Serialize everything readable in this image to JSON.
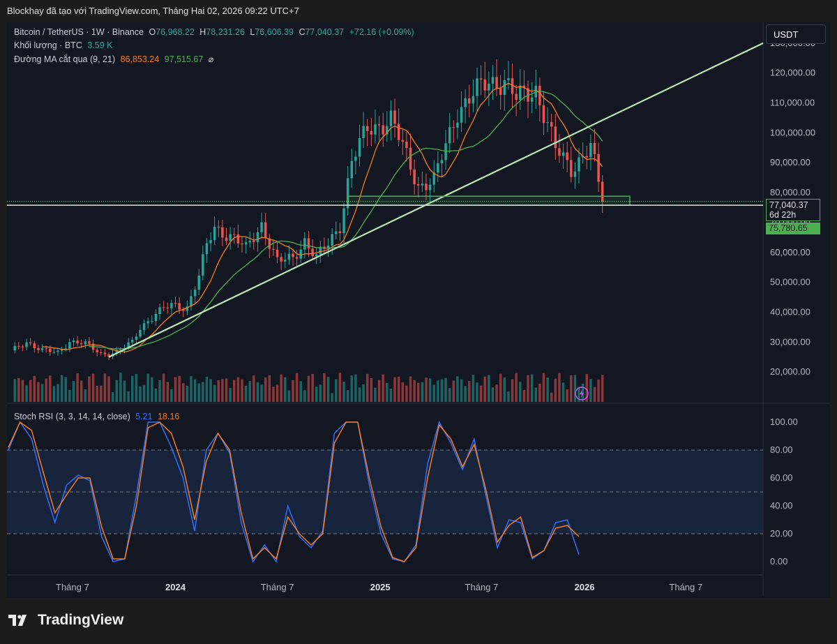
{
  "header": {
    "attribution": "Blockhay đã tạo với TradingView.com, Tháng Hai 02, 2026 09:22 UTC+7"
  },
  "legend": {
    "symbol": "Bitcoin / TetherUS · 1W · Binance",
    "o_label": "O",
    "o_value": "76,968.22",
    "h_label": "H",
    "h_value": "78,231.26",
    "l_label": "L",
    "l_value": "76,606.39",
    "c_label": "C",
    "c_value": "77,040.37",
    "change": "+72.16 (+0.09%)",
    "volume_label": "Khối lượng · BTC",
    "volume_value": "3.59 K",
    "ma_label": "Đường MA cắt qua (9, 21)",
    "ma_fast_value": "86,853.24",
    "ma_slow_value": "97,515.67",
    "ma_icon": "empty-set-icon"
  },
  "currency_button": "USDT",
  "price_tag": {
    "price": "77,040.37",
    "countdown": "6d 22h"
  },
  "support_tag": "75,780.65",
  "rsi_legend": {
    "label": "Stoch RSI (3, 3, 14, 14, close)",
    "k_value": "5.21",
    "d_value": "18.16"
  },
  "brand": "TradingView",
  "colors": {
    "up": "#26a69a",
    "down": "#ef5350",
    "ma_fast": "#f57c1f",
    "ma_slow": "#4caf50",
    "trendline": "#b9e6b4",
    "rsi_k": "#2f6fff",
    "rsi_d": "#f57c1f",
    "cross": "#2962ff"
  },
  "chart_data": [
    {
      "type": "candlestick",
      "title": "Bitcoin / TetherUS · 1W · Binance",
      "y_ticks": [
        "20,000.00",
        "30,000.00",
        "40,000.00",
        "50,000.00",
        "60,000.00",
        "70,000.00",
        "80,000.00",
        "90,000.00",
        "100,000.00",
        "110,000.00",
        "120,000.00",
        "130,000.00"
      ],
      "x_ticks": [
        "Tháng 7",
        "2024",
        "Tháng 7",
        "2025",
        "Tháng 7",
        "2026",
        "Tháng 7"
      ],
      "x_tick_dates": [
        "2023-07-01",
        "2024-01-01",
        "2024-07-01",
        "2025-01-01",
        "2025-07-01",
        "2026-01-01",
        "2026-07-01"
      ],
      "x_range": [
        "2023-03-06",
        "2026-11-16"
      ],
      "ylim": [
        10000,
        133000
      ],
      "weekly_close": [
        {
          "d": "2023-03-13",
          "c": 26900
        },
        {
          "d": "2023-04-10",
          "c": 30200
        },
        {
          "d": "2023-05-08",
          "c": 27100
        },
        {
          "d": "2023-06-05",
          "c": 26500
        },
        {
          "d": "2023-06-26",
          "c": 30400
        },
        {
          "d": "2023-07-24",
          "c": 29300
        },
        {
          "d": "2023-08-21",
          "c": 26100
        },
        {
          "d": "2023-09-18",
          "c": 26500
        },
        {
          "d": "2023-10-16",
          "c": 29900
        },
        {
          "d": "2023-10-30",
          "c": 35000
        },
        {
          "d": "2023-11-27",
          "c": 39500
        },
        {
          "d": "2023-12-25",
          "c": 42300
        },
        {
          "d": "2024-01-22",
          "c": 41800
        },
        {
          "d": "2024-02-12",
          "c": 52000
        },
        {
          "d": "2024-02-26",
          "c": 62000
        },
        {
          "d": "2024-03-11",
          "c": 68300
        },
        {
          "d": "2024-04-15",
          "c": 64900
        },
        {
          "d": "2024-05-06",
          "c": 60900
        },
        {
          "d": "2024-06-03",
          "c": 69600
        },
        {
          "d": "2024-07-01",
          "c": 56700
        },
        {
          "d": "2024-07-29",
          "c": 58100
        },
        {
          "d": "2024-08-19",
          "c": 64200
        },
        {
          "d": "2024-09-09",
          "c": 58000
        },
        {
          "d": "2024-09-30",
          "c": 62800
        },
        {
          "d": "2024-10-21",
          "c": 69300
        },
        {
          "d": "2024-11-11",
          "c": 90500
        },
        {
          "d": "2024-12-09",
          "c": 101100
        },
        {
          "d": "2025-01-20",
          "c": 104600
        },
        {
          "d": "2025-03-10",
          "c": 82600
        },
        {
          "d": "2025-04-07",
          "c": 83700
        },
        {
          "d": "2025-05-19",
          "c": 107800
        },
        {
          "d": "2025-07-14",
          "c": 117300
        },
        {
          "d": "2025-08-11",
          "c": 117400
        },
        {
          "d": "2025-09-01",
          "c": 111100
        },
        {
          "d": "2025-10-06",
          "c": 115000
        },
        {
          "d": "2025-11-10",
          "c": 94300
        },
        {
          "d": "2025-12-08",
          "c": 88300
        },
        {
          "d": "2026-01-12",
          "c": 95100
        },
        {
          "d": "2026-02-02",
          "c": 77040
        }
      ],
      "ma_cross": {
        "label": "Đường MA cắt qua (9, 21)",
        "fast": 86853.24,
        "slow": 97515.67
      },
      "annotations": [
        {
          "type": "trendline",
          "from": {
            "d": "2023-09-04",
            "v": 25000
          },
          "to": {
            "d": "2026-11-16",
            "v": 130000
          }
        },
        {
          "type": "zone",
          "from": "2024-11-04",
          "to": "2026-03-23",
          "low": 75780.65,
          "high": 78800
        }
      ],
      "last_price": 77040.37,
      "support": 75780.65
    },
    {
      "type": "line",
      "title": "Stoch RSI (3, 3, 14, 14, close)",
      "y_ticks": [
        "0.00",
        "20.00",
        "40.00",
        "60.00",
        "80.00",
        "100.00"
      ],
      "ylim": [
        -7,
        107
      ],
      "bands": [
        20,
        80
      ],
      "series": [
        {
          "name": "K",
          "values": [
            80,
            100,
            88,
            55,
            28,
            55,
            62,
            58,
            18,
            0,
            2,
            48,
            100,
            100,
            82,
            60,
            22,
            80,
            92,
            78,
            28,
            0,
            12,
            0,
            40,
            18,
            10,
            22,
            92,
            100,
            100,
            55,
            20,
            2,
            0,
            12,
            70,
            100,
            85,
            66,
            88,
            48,
            10,
            30,
            28,
            2,
            8,
            28,
            30,
            5
          ]
        },
        {
          "name": "D",
          "values": [
            82,
            100,
            94,
            64,
            35,
            48,
            60,
            60,
            25,
            2,
            2,
            40,
            96,
            100,
            92,
            68,
            30,
            72,
            92,
            80,
            35,
            2,
            10,
            2,
            32,
            20,
            12,
            20,
            85,
            100,
            100,
            60,
            25,
            3,
            0,
            10,
            60,
            98,
            88,
            68,
            84,
            52,
            14,
            26,
            32,
            3,
            8,
            24,
            26,
            18
          ]
        }
      ]
    }
  ]
}
